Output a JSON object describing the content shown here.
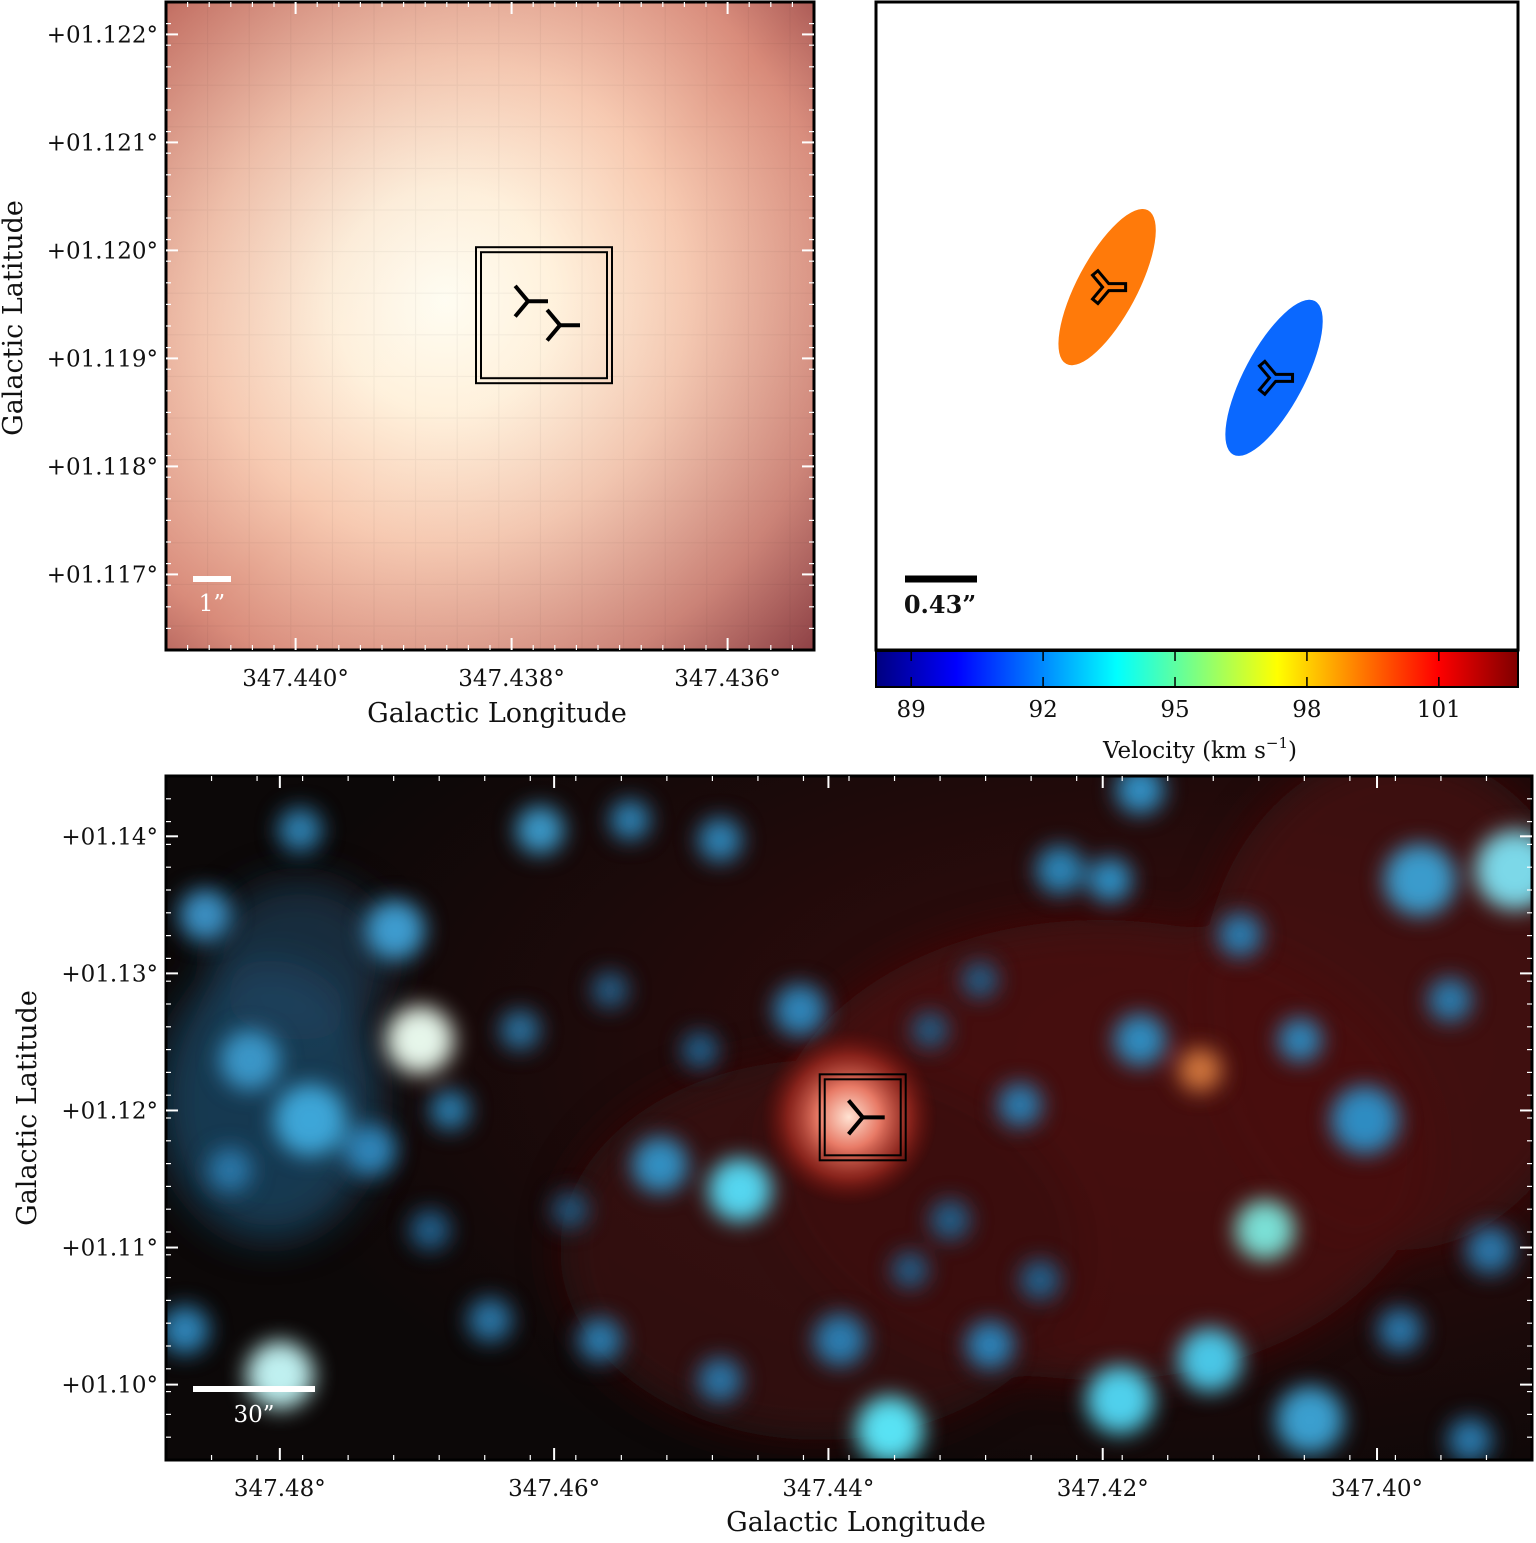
{
  "chart_data": [
    {
      "type": "heatmap",
      "panel": "top-left image",
      "colormap_colors": [
        "#a54a4a",
        "#dd8a74",
        "#ffe0c8",
        "#fffbf0"
      ],
      "xlabel": "Galactic Longitude",
      "ylabel": "Galactic Latitude",
      "x_ticks": [
        "347.440°",
        "347.438°",
        "347.436°"
      ],
      "x_tick_values": [
        347.44,
        347.438,
        347.436
      ],
      "y_ticks": [
        "+01.122°",
        "+01.121°",
        "+01.120°",
        "+01.119°",
        "+01.118°",
        "+01.117°"
      ],
      "y_tick_values": [
        1.122,
        1.121,
        1.12,
        1.119,
        1.118,
        1.117
      ],
      "xlim": [
        347.4412,
        347.4352
      ],
      "ylim": [
        1.1163,
        1.1223
      ],
      "scale_bar": "1”",
      "marker": {
        "type": "three-pointed star",
        "l": 347.4377,
        "b": 1.1194
      },
      "box": "double square around marker"
    },
    {
      "type": "scatter",
      "panel": "top-right velocity ellipses",
      "points": [
        {
          "x": 0.36,
          "y": 0.56,
          "velocity": 99
        },
        {
          "x": 0.62,
          "y": 0.42,
          "velocity": 91.5
        }
      ],
      "ellipse_colors": [
        "#ff7a0a",
        "#0a68ff"
      ],
      "scale_bar": "0.43”",
      "colorbar": {
        "label": "Velocity (km s",
        "label_sup": "−1",
        "label_end": ")",
        "ticks": [
          "89",
          "92",
          "95",
          "98",
          "101"
        ],
        "tick_values": [
          89,
          92,
          95,
          98,
          101
        ],
        "range": [
          88.2,
          102.8
        ],
        "colormap": "jet",
        "colors": [
          "#00007f",
          "#0000ff",
          "#007fff",
          "#00ffff",
          "#7fff7f",
          "#ffff00",
          "#ff7f00",
          "#ff0000",
          "#7f0000"
        ]
      }
    },
    {
      "type": "heatmap",
      "panel": "bottom wide-field image",
      "background_colors": [
        "#1a0a0a",
        "#5a1010",
        "#4aa8d8",
        "#7ff0ff"
      ],
      "xlabel": "Galactic Longitude",
      "ylabel": "Galactic Latitude",
      "x_ticks": [
        "347.48°",
        "347.46°",
        "347.44°",
        "347.42°",
        "347.40°"
      ],
      "x_tick_values": [
        347.48,
        347.46,
        347.44,
        347.42,
        347.4
      ],
      "y_ticks": [
        "+01.14°",
        "+01.13°",
        "+01.12°",
        "+01.11°",
        "+01.10°"
      ],
      "y_tick_values": [
        1.14,
        1.13,
        1.12,
        1.11,
        1.1
      ],
      "xlim": [
        347.4883,
        347.3887
      ],
      "ylim": [
        1.0945,
        1.1444
      ],
      "scale_bar": "30”",
      "marker": {
        "type": "three-pointed star",
        "l": 347.4375,
        "b": 1.1195
      },
      "box": "double square around marker"
    }
  ]
}
